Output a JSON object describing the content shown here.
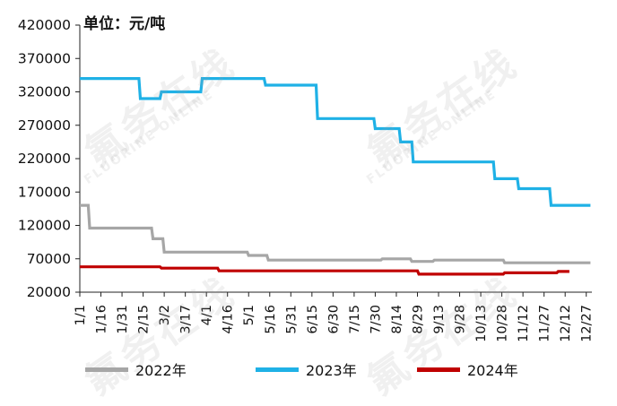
{
  "chart_data": {
    "type": "line",
    "unit_label": "单位：元/吨",
    "ylim": [
      20000,
      420000
    ],
    "y_ticks": [
      "420000",
      "370000",
      "320000",
      "270000",
      "220000",
      "170000",
      "120000",
      "70000",
      "20000"
    ],
    "y_tick_values": [
      420000,
      370000,
      320000,
      270000,
      220000,
      170000,
      120000,
      70000,
      20000
    ],
    "x_ticks": [
      "1/1",
      "1/16",
      "1/31",
      "2/15",
      "3/2",
      "3/17",
      "4/1",
      "4/16",
      "5/1",
      "5/16",
      "5/31",
      "6/15",
      "6/30",
      "7/15",
      "7/30",
      "8/14",
      "8/29",
      "9/13",
      "9/28",
      "10/13",
      "10/28",
      "11/12",
      "11/27",
      "12/12",
      "12/27"
    ],
    "x_tick_days": [
      1,
      16,
      31,
      46,
      61,
      76,
      91,
      106,
      121,
      136,
      151,
      166,
      181,
      196,
      211,
      226,
      241,
      256,
      271,
      286,
      301,
      316,
      331,
      346,
      361
    ],
    "grid": false,
    "legend_position": "bottom",
    "series": [
      {
        "name": "2022年",
        "color": "#a6a6a6",
        "x": [
          "1/1",
          "1/7",
          "1/8",
          "2/21",
          "2/22",
          "3/1",
          "3/2",
          "4/30",
          "5/1",
          "5/14",
          "5/15",
          "8/3",
          "8/4",
          "8/24",
          "8/25",
          "9/9",
          "9/10",
          "10/29",
          "10/30",
          "12/30"
        ],
        "values": [
          150000,
          150000,
          116000,
          116000,
          100000,
          100000,
          80000,
          80000,
          75000,
          75000,
          68000,
          68000,
          70000,
          70000,
          66000,
          66000,
          68000,
          68000,
          64000,
          64000
        ]
      },
      {
        "name": "2023年",
        "color": "#1fb1e6",
        "x": [
          "1/1",
          "2/12",
          "2/13",
          "2/27",
          "2/28",
          "3/28",
          "3/29",
          "5/12",
          "5/13",
          "6/18",
          "6/19",
          "7/29",
          "7/30",
          "8/16",
          "8/17",
          "8/25",
          "8/26",
          "10/22",
          "10/23",
          "11/8",
          "11/9",
          "12/1",
          "12/2",
          "12/30"
        ],
        "values": [
          340000,
          340000,
          310000,
          310000,
          320000,
          320000,
          340000,
          340000,
          330000,
          330000,
          280000,
          280000,
          265000,
          265000,
          245000,
          245000,
          215000,
          215000,
          190000,
          190000,
          175000,
          175000,
          150000,
          150000
        ]
      },
      {
        "name": "2024年",
        "color": "#c00000",
        "x": [
          "1/1",
          "2/27",
          "2/28",
          "4/9",
          "4/10",
          "8/29",
          "8/30",
          "10/29",
          "10/30",
          "12/6",
          "12/7",
          "12/15"
        ],
        "values": [
          58000,
          58000,
          56000,
          56000,
          52000,
          52000,
          47000,
          47000,
          49000,
          49000,
          51000,
          51000
        ]
      }
    ]
  },
  "watermark": {
    "cn": "氟务在线",
    "en": "FLUORINE ONLINE"
  }
}
